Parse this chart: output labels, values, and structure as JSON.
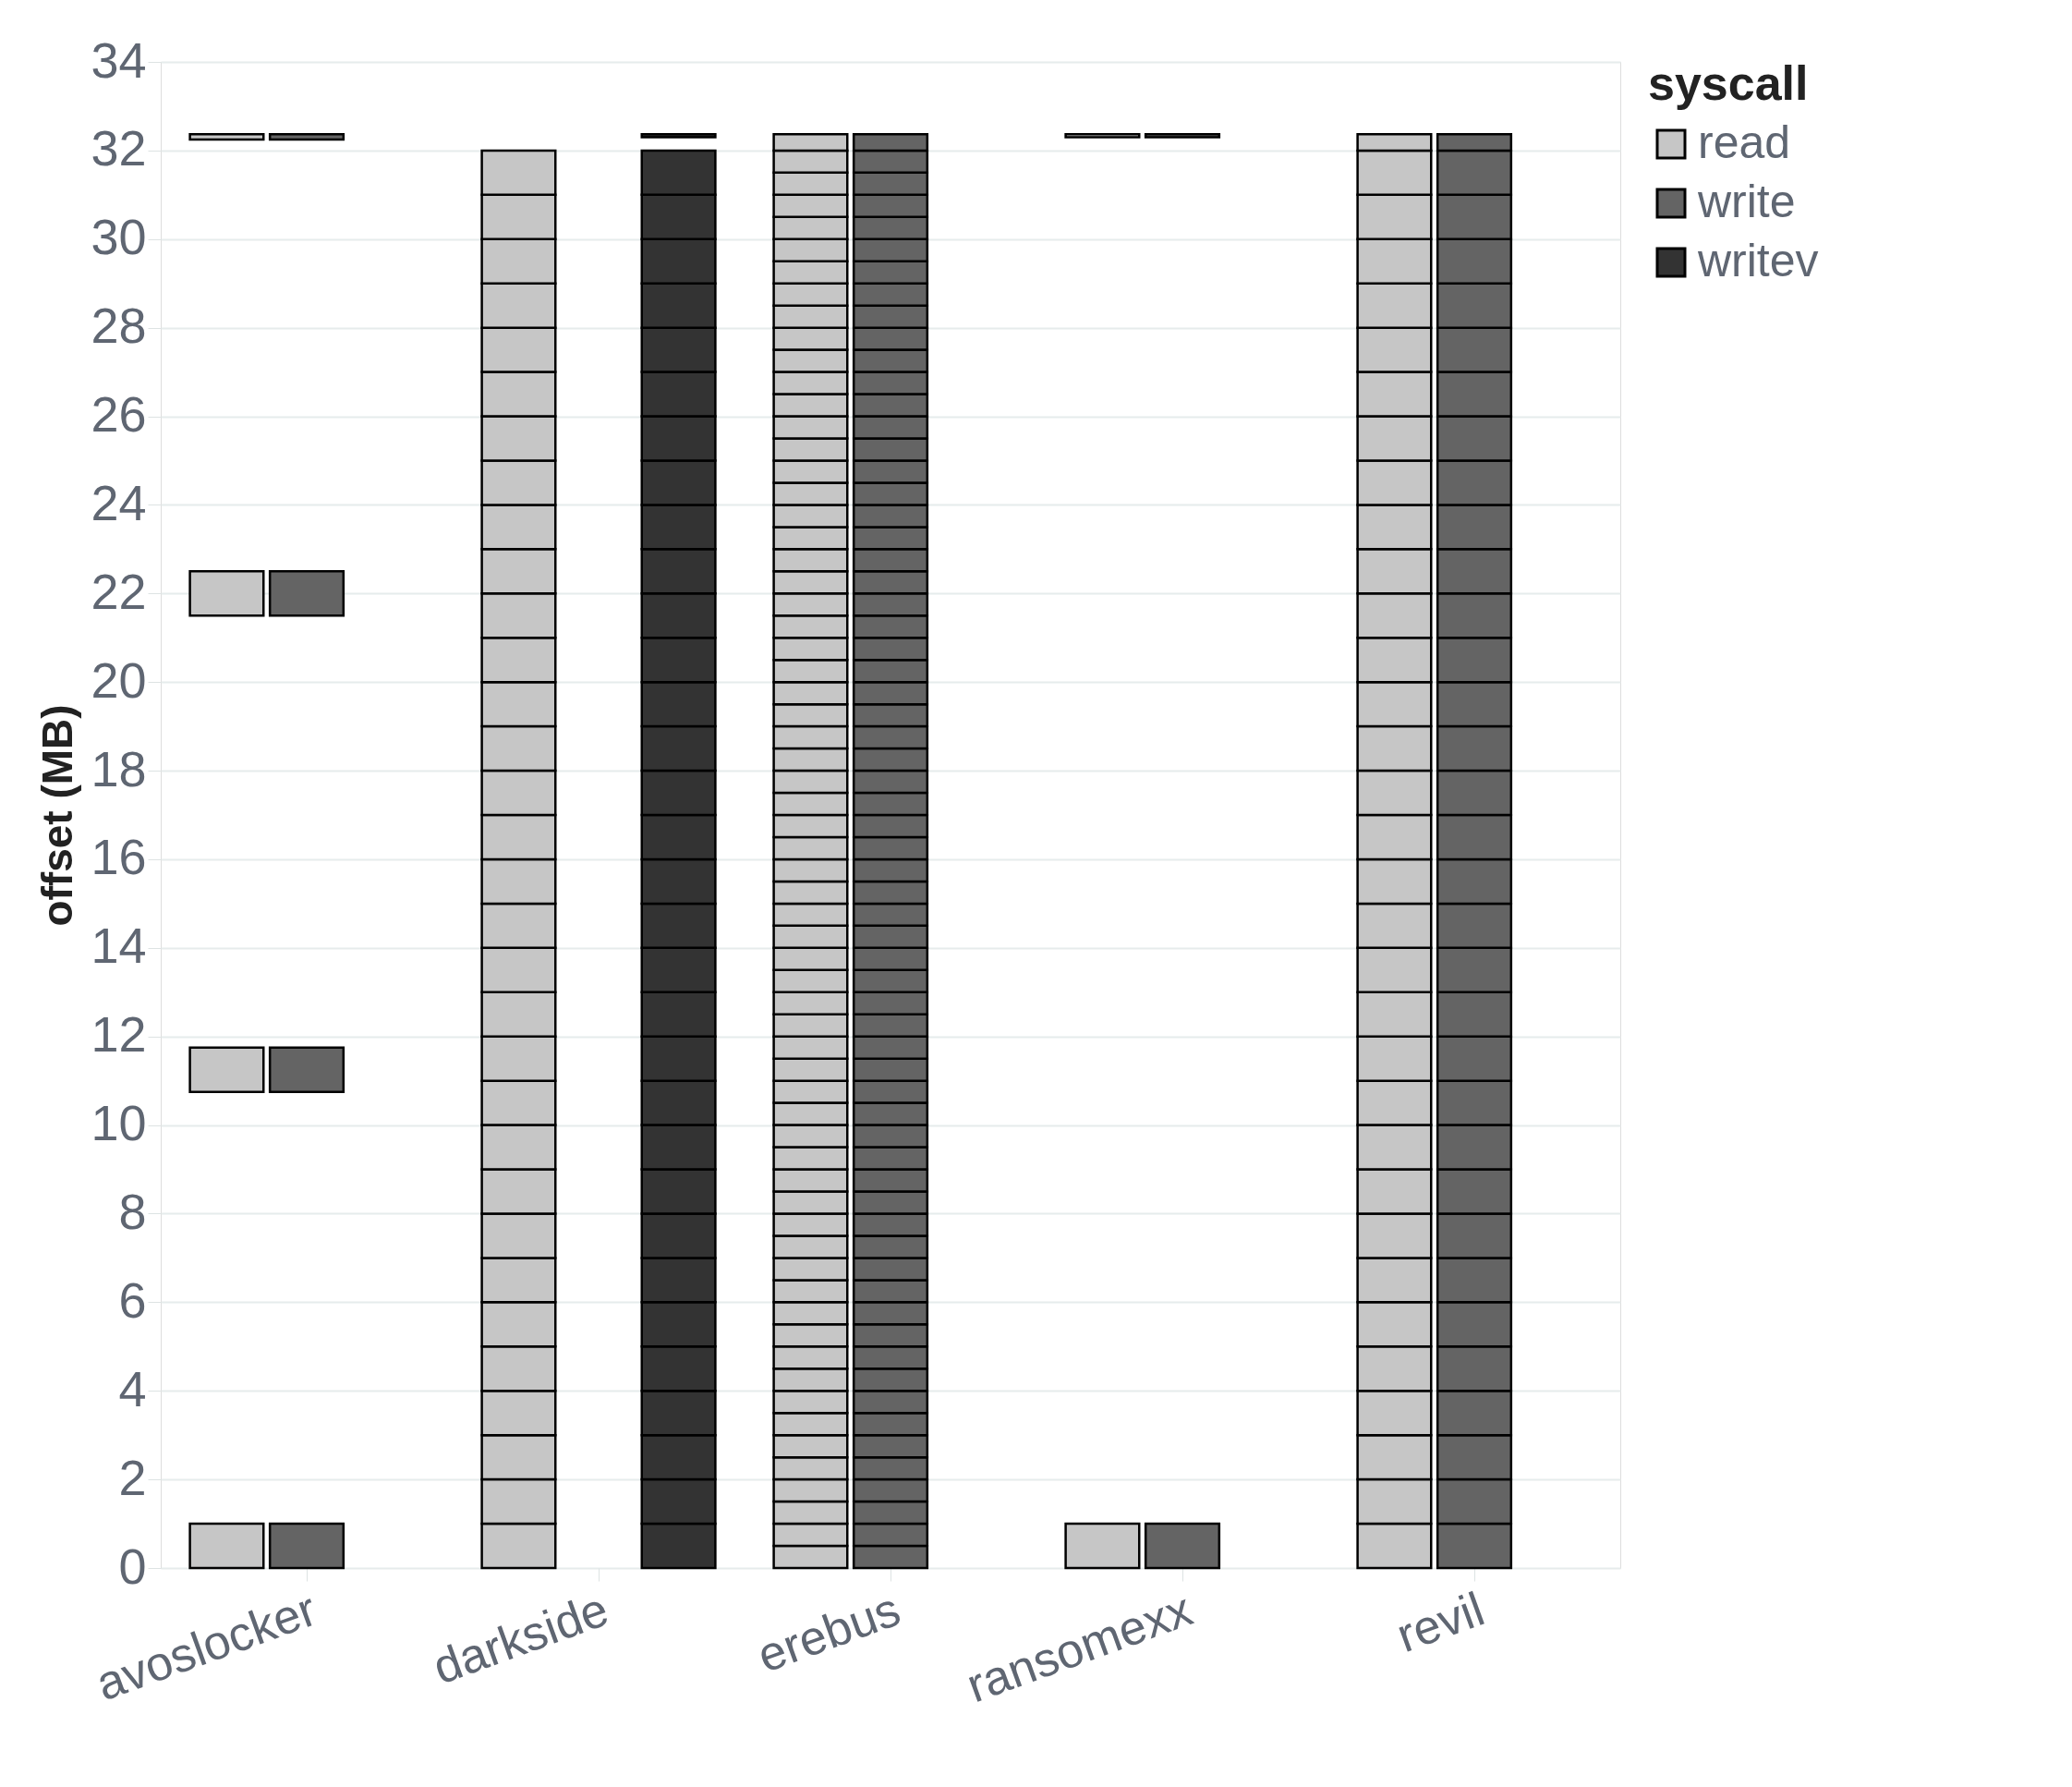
{
  "chart_data": {
    "type": "bar",
    "ylabel": "offset (MB)",
    "legend_title": "syscall",
    "legend": "top right",
    "grid": "y",
    "categories": [
      "avoslocker",
      "darkside",
      "erebus",
      "ransomexx",
      "revil"
    ],
    "ylim": [
      0,
      34
    ],
    "yticks": [
      0,
      2,
      4,
      6,
      8,
      10,
      12,
      14,
      16,
      18,
      20,
      22,
      24,
      26,
      28,
      30,
      32,
      34
    ],
    "series": [
      {
        "name": "read",
        "color": "#c6c6c6",
        "x": [
          "avoslocker",
          "avoslocker",
          "avoslocker",
          "avoslocker",
          "darkside",
          "darkside",
          "darkside",
          "darkside",
          "darkside",
          "darkside",
          "darkside",
          "darkside",
          "darkside",
          "darkside",
          "darkside",
          "darkside",
          "darkside",
          "darkside",
          "darkside",
          "darkside",
          "darkside",
          "darkside",
          "darkside",
          "darkside",
          "darkside",
          "darkside",
          "darkside",
          "darkside",
          "darkside",
          "darkside",
          "darkside",
          "darkside",
          "darkside",
          "darkside",
          "darkside",
          "darkside",
          "erebus",
          "erebus",
          "erebus",
          "erebus",
          "erebus",
          "erebus",
          "erebus",
          "erebus",
          "erebus",
          "erebus",
          "erebus",
          "erebus",
          "erebus",
          "erebus",
          "erebus",
          "erebus",
          "erebus",
          "erebus",
          "erebus",
          "erebus",
          "erebus",
          "erebus",
          "erebus",
          "erebus",
          "erebus",
          "erebus",
          "erebus",
          "erebus",
          "erebus",
          "erebus",
          "erebus",
          "erebus",
          "erebus",
          "erebus",
          "erebus",
          "erebus",
          "erebus",
          "erebus",
          "erebus",
          "erebus",
          "erebus",
          "erebus",
          "erebus",
          "erebus",
          "erebus",
          "erebus",
          "erebus",
          "erebus",
          "erebus",
          "erebus",
          "erebus",
          "erebus",
          "erebus",
          "erebus",
          "erebus",
          "erebus",
          "erebus",
          "erebus",
          "erebus",
          "erebus",
          "erebus",
          "erebus",
          "erebus",
          "erebus",
          "erebus",
          "ransomexx",
          "ransomexx",
          "revil",
          "revil",
          "revil",
          "revil",
          "revil",
          "revil",
          "revil",
          "revil",
          "revil",
          "revil",
          "revil",
          "revil",
          "revil",
          "revil",
          "revil",
          "revil",
          "revil",
          "revil",
          "revil",
          "revil",
          "revil",
          "revil",
          "revil",
          "revil",
          "revil",
          "revil",
          "revil",
          "revil",
          "revil",
          "revil",
          "revil",
          "revil",
          "revil"
        ],
        "base": [
          0,
          10.75,
          21.5,
          32.25,
          0,
          1,
          2,
          3,
          4,
          5,
          6,
          7,
          8,
          9,
          10,
          11,
          12,
          13,
          14,
          15,
          16,
          17,
          18,
          19,
          20,
          21,
          22,
          23,
          24,
          25,
          26,
          27,
          28,
          29,
          30,
          31,
          0,
          0.5,
          1,
          1.5,
          2,
          2.5,
          3,
          3.5,
          4,
          4.5,
          5,
          5.5,
          6,
          6.5,
          7,
          7.5,
          8,
          8.5,
          9,
          9.5,
          10,
          10.5,
          11,
          11.5,
          12,
          12.5,
          13,
          13.5,
          14,
          14.5,
          15,
          15.5,
          16,
          16.5,
          17,
          17.5,
          18,
          18.5,
          19,
          19.5,
          20,
          20.5,
          21,
          21.5,
          22,
          22.5,
          23,
          23.5,
          24,
          24.5,
          25,
          25.5,
          26,
          26.5,
          27,
          27.5,
          28,
          28.5,
          29,
          29.5,
          30,
          30.5,
          31,
          31.5,
          32,
          0,
          32.3,
          0,
          1,
          2,
          3,
          4,
          5,
          6,
          7,
          8,
          9,
          10,
          11,
          12,
          13,
          14,
          15,
          16,
          17,
          18,
          19,
          20,
          21,
          22,
          23,
          24,
          25,
          26,
          27,
          28,
          29,
          30,
          31,
          32
        ],
        "values": [
          1,
          1,
          1,
          0.12,
          1,
          1,
          1,
          1,
          1,
          1,
          1,
          1,
          1,
          1,
          1,
          1,
          1,
          1,
          1,
          1,
          1,
          1,
          1,
          1,
          1,
          1,
          1,
          1,
          1,
          1,
          1,
          1,
          1,
          1,
          1,
          1,
          0.5,
          0.5,
          0.5,
          0.5,
          0.5,
          0.5,
          0.5,
          0.5,
          0.5,
          0.5,
          0.5,
          0.5,
          0.5,
          0.5,
          0.5,
          0.5,
          0.5,
          0.5,
          0.5,
          0.5,
          0.5,
          0.5,
          0.5,
          0.5,
          0.5,
          0.5,
          0.5,
          0.5,
          0.5,
          0.5,
          0.5,
          0.5,
          0.5,
          0.5,
          0.5,
          0.5,
          0.5,
          0.5,
          0.5,
          0.5,
          0.5,
          0.5,
          0.5,
          0.5,
          0.5,
          0.5,
          0.5,
          0.5,
          0.5,
          0.5,
          0.5,
          0.5,
          0.5,
          0.5,
          0.5,
          0.5,
          0.5,
          0.5,
          0.5,
          0.5,
          0.5,
          0.5,
          0.5,
          0.5,
          0.37,
          1,
          0.07,
          1,
          1,
          1,
          1,
          1,
          1,
          1,
          1,
          1,
          1,
          1,
          1,
          1,
          1,
          1,
          1,
          1,
          1,
          1,
          1,
          1,
          1,
          1,
          1,
          1,
          1,
          1,
          1,
          1,
          1,
          1,
          1,
          0.37
        ]
      },
      {
        "name": "write",
        "color": "#646464",
        "x": [
          "avoslocker",
          "avoslocker",
          "avoslocker",
          "avoslocker",
          "erebus",
          "erebus",
          "erebus",
          "erebus",
          "erebus",
          "erebus",
          "erebus",
          "erebus",
          "erebus",
          "erebus",
          "erebus",
          "erebus",
          "erebus",
          "erebus",
          "erebus",
          "erebus",
          "erebus",
          "erebus",
          "erebus",
          "erebus",
          "erebus",
          "erebus",
          "erebus",
          "erebus",
          "erebus",
          "erebus",
          "erebus",
          "erebus",
          "erebus",
          "erebus",
          "erebus",
          "erebus",
          "erebus",
          "erebus",
          "erebus",
          "erebus",
          "erebus",
          "erebus",
          "erebus",
          "erebus",
          "erebus",
          "erebus",
          "erebus",
          "erebus",
          "erebus",
          "erebus",
          "erebus",
          "erebus",
          "erebus",
          "erebus",
          "erebus",
          "erebus",
          "erebus",
          "erebus",
          "erebus",
          "erebus",
          "erebus",
          "erebus",
          "erebus",
          "erebus",
          "erebus",
          "erebus",
          "erebus",
          "erebus",
          "erebus",
          "ransomexx",
          "ransomexx",
          "revil",
          "revil",
          "revil",
          "revil",
          "revil",
          "revil",
          "revil",
          "revil",
          "revil",
          "revil",
          "revil",
          "revil",
          "revil",
          "revil",
          "revil",
          "revil",
          "revil",
          "revil",
          "revil",
          "revil",
          "revil",
          "revil",
          "revil",
          "revil",
          "revil",
          "revil",
          "revil",
          "revil",
          "revil",
          "revil",
          "revil",
          "revil",
          "revil"
        ],
        "base": [
          0,
          10.75,
          21.5,
          32.25,
          0,
          0.5,
          1,
          1.5,
          2,
          2.5,
          3,
          3.5,
          4,
          4.5,
          5,
          5.5,
          6,
          6.5,
          7,
          7.5,
          8,
          8.5,
          9,
          9.5,
          10,
          10.5,
          11,
          11.5,
          12,
          12.5,
          13,
          13.5,
          14,
          14.5,
          15,
          15.5,
          16,
          16.5,
          17,
          17.5,
          18,
          18.5,
          19,
          19.5,
          20,
          20.5,
          21,
          21.5,
          22,
          22.5,
          23,
          23.5,
          24,
          24.5,
          25,
          25.5,
          26,
          26.5,
          27,
          27.5,
          28,
          28.5,
          29,
          29.5,
          30,
          30.5,
          31,
          31.5,
          32,
          0,
          32.3,
          0,
          1,
          2,
          3,
          4,
          5,
          6,
          7,
          8,
          9,
          10,
          11,
          12,
          13,
          14,
          15,
          16,
          17,
          18,
          19,
          20,
          21,
          22,
          23,
          24,
          25,
          26,
          27,
          28,
          29,
          30,
          31,
          32
        ],
        "values": [
          1,
          1,
          1,
          0.12,
          0.5,
          0.5,
          0.5,
          0.5,
          0.5,
          0.5,
          0.5,
          0.5,
          0.5,
          0.5,
          0.5,
          0.5,
          0.5,
          0.5,
          0.5,
          0.5,
          0.5,
          0.5,
          0.5,
          0.5,
          0.5,
          0.5,
          0.5,
          0.5,
          0.5,
          0.5,
          0.5,
          0.5,
          0.5,
          0.5,
          0.5,
          0.5,
          0.5,
          0.5,
          0.5,
          0.5,
          0.5,
          0.5,
          0.5,
          0.5,
          0.5,
          0.5,
          0.5,
          0.5,
          0.5,
          0.5,
          0.5,
          0.5,
          0.5,
          0.5,
          0.5,
          0.5,
          0.5,
          0.5,
          0.5,
          0.5,
          0.5,
          0.5,
          0.5,
          0.5,
          0.5,
          0.5,
          0.5,
          0.5,
          0.37,
          1,
          0.07,
          1,
          1,
          1,
          1,
          1,
          1,
          1,
          1,
          1,
          1,
          1,
          1,
          1,
          1,
          1,
          1,
          1,
          1,
          1,
          1,
          1,
          1,
          1,
          1,
          1,
          1,
          1,
          1,
          1,
          1,
          1,
          1,
          0.37
        ]
      },
      {
        "name": "writev",
        "color": "#333333",
        "x": [
          "darkside",
          "darkside",
          "darkside",
          "darkside",
          "darkside",
          "darkside",
          "darkside",
          "darkside",
          "darkside",
          "darkside",
          "darkside",
          "darkside",
          "darkside",
          "darkside",
          "darkside",
          "darkside",
          "darkside",
          "darkside",
          "darkside",
          "darkside",
          "darkside",
          "darkside",
          "darkside",
          "darkside",
          "darkside",
          "darkside",
          "darkside",
          "darkside",
          "darkside",
          "darkside",
          "darkside",
          "darkside",
          "darkside"
        ],
        "base": [
          0,
          1,
          2,
          3,
          4,
          5,
          6,
          7,
          8,
          9,
          10,
          11,
          12,
          13,
          14,
          15,
          16,
          17,
          18,
          19,
          20,
          21,
          22,
          23,
          24,
          25,
          26,
          27,
          28,
          29,
          30,
          31,
          32.3
        ],
        "values": [
          1,
          1,
          1,
          1,
          1,
          1,
          1,
          1,
          1,
          1,
          1,
          1,
          1,
          1,
          1,
          1,
          1,
          1,
          1,
          1,
          1,
          1,
          1,
          1,
          1,
          1,
          1,
          1,
          1,
          1,
          1,
          1,
          0.07
        ]
      }
    ]
  }
}
